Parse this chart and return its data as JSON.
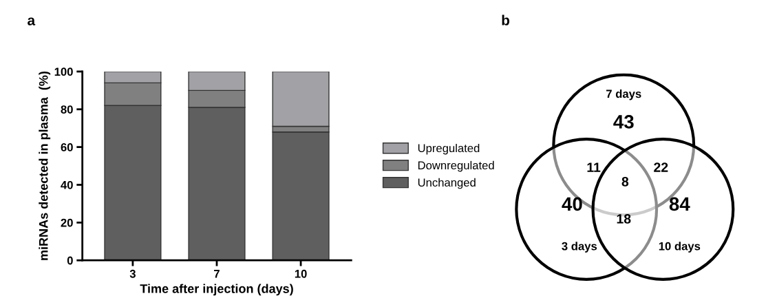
{
  "chart_data": [
    {
      "type": "bar",
      "title": "a",
      "xlabel": "Time after injection (days)",
      "ylabel": "miRNAs detected in plasma  (%)",
      "categories": [
        "3",
        "7",
        "10"
      ],
      "stacked": true,
      "ylim": [
        0,
        100
      ],
      "yticks": [
        0,
        20,
        40,
        60,
        80,
        100
      ],
      "legend": "right",
      "grid": false,
      "series": [
        {
          "name": "Unchanged",
          "color": "#5f5f5f",
          "values": [
            82,
            81,
            68
          ]
        },
        {
          "name": "Downregulated",
          "color": "#808080",
          "values": [
            12,
            9,
            3
          ]
        },
        {
          "name": "Upregulated",
          "color": "#a2a1a5",
          "values": [
            6,
            10,
            29
          ]
        }
      ]
    },
    {
      "type": "other",
      "title": "b",
      "categories": [
        "7 days",
        "3 days",
        "10 days"
      ],
      "values": [
        43,
        40,
        84
      ],
      "data_labels": true,
      "annotations": [
        "11",
        "22",
        "18",
        "8"
      ]
    }
  ]
}
